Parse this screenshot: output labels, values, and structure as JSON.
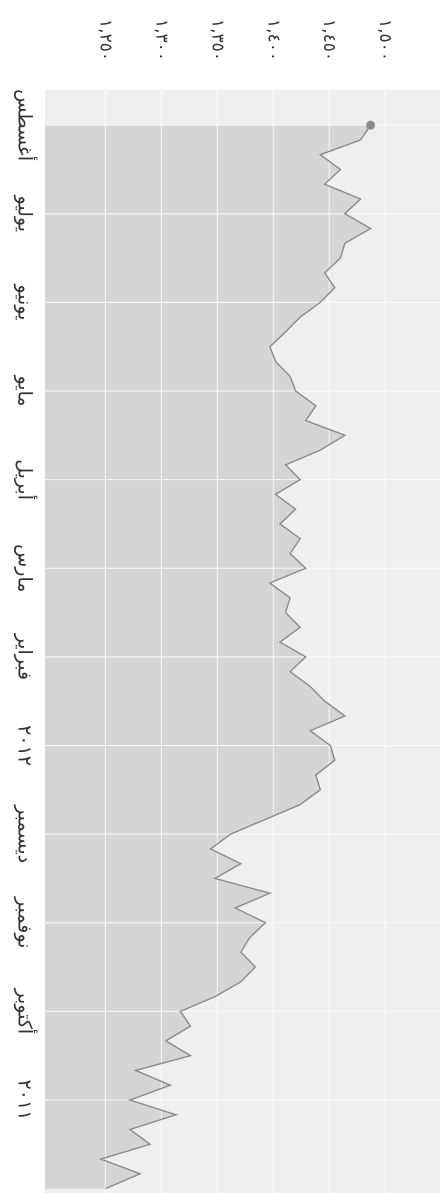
{
  "chart_data": {
    "type": "line",
    "categories": [
      null,
      null,
      null,
      null,
      null,
      null,
      "٢٠١١",
      null,
      null,
      null,
      null,
      null,
      "أكتوبر",
      null,
      null,
      null,
      null,
      null,
      "نوفمبر",
      null,
      null,
      null,
      null,
      null,
      "ديسمبر",
      null,
      null,
      null,
      null,
      null,
      "٢٠١٢",
      null,
      null,
      null,
      null,
      null,
      "فبراير",
      null,
      null,
      null,
      null,
      null,
      "مارس",
      null,
      null,
      null,
      null,
      null,
      "أبريل",
      null,
      null,
      null,
      null,
      null,
      "مايو",
      null,
      null,
      null,
      null,
      null,
      "يونيو",
      null,
      null,
      null,
      null,
      null,
      "يوليو",
      null,
      null,
      null,
      null,
      null,
      "أغسطس"
    ],
    "values": [
      1250,
      1281,
      1246,
      1290,
      1272,
      1313,
      1272,
      1308,
      1277,
      1326,
      1304,
      1326,
      1317,
      1348,
      1371,
      1384,
      1371,
      1379,
      1393,
      1366,
      1397,
      1348,
      1371,
      1344,
      1362,
      1393,
      1424,
      1442,
      1438,
      1455,
      1451,
      1433,
      1464,
      1446,
      1433,
      1415,
      1429,
      1406,
      1424,
      1411,
      1415,
      1397,
      1429,
      1415,
      1424,
      1406,
      1420,
      1402,
      1424,
      1411,
      1442,
      1464,
      1429,
      1438,
      1420,
      1415,
      1402,
      1397,
      1411,
      1424,
      1442,
      1455,
      1446,
      1460,
      1464,
      1487,
      1464,
      1478,
      1446,
      1460,
      1442,
      1478,
      1487
    ],
    "color": "#8a8a8a",
    "ylim": [
      1196,
      1549
    ],
    "yticks": [
      {
        "value": 1250,
        "label": "١,٢٥٠"
      },
      {
        "value": 1300,
        "label": "١,٣٠٠"
      },
      {
        "value": 1350,
        "label": "١,٣٥٠"
      },
      {
        "value": 1400,
        "label": "١,٤٠٠"
      },
      {
        "value": 1450,
        "label": "١,٤٥٠"
      },
      {
        "value": 1500,
        "label": "١,٥٠٠"
      }
    ],
    "grid": true
  }
}
